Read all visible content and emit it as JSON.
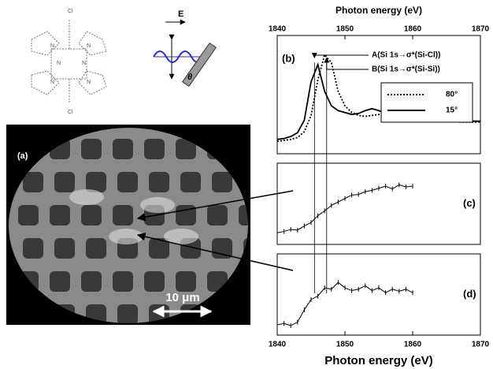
{
  "molecule": {
    "labels": [
      "Cl",
      "Cl",
      "N",
      "N",
      "N",
      "N",
      "N",
      "N"
    ]
  },
  "polarization": {
    "field": "E",
    "angle": "θ"
  },
  "image": {
    "label": "(a)",
    "scale_bar": "10 μm"
  },
  "chart_data": [
    {
      "type": "line",
      "panel": "(b)",
      "x_label": "Photon energy (eV)",
      "xlim": [
        1840,
        1870
      ],
      "xticks": [
        1840,
        1850,
        1860,
        1870
      ],
      "ylim": [
        0,
        1.1
      ],
      "x": [
        1840,
        1841,
        1842,
        1843,
        1844,
        1845,
        1846,
        1847,
        1848,
        1849,
        1850,
        1851,
        1852,
        1853,
        1854,
        1855,
        1856,
        1857,
        1858,
        1859,
        1860,
        1861,
        1862,
        1863,
        1864,
        1865,
        1866,
        1867,
        1868,
        1869,
        1870
      ],
      "series": [
        {
          "name": "80°",
          "color": "#000000",
          "dash": "2,2",
          "values": [
            0.08,
            0.09,
            0.1,
            0.12,
            0.18,
            0.35,
            0.72,
            0.98,
            0.9,
            0.6,
            0.45,
            0.38,
            0.35,
            0.34,
            0.35,
            0.36,
            0.35,
            0.33,
            0.32,
            0.31,
            0.3,
            0.3,
            0.3,
            0.29,
            0.29,
            0.29,
            0.29,
            0.28,
            0.28,
            0.28,
            0.28
          ]
        },
        {
          "name": "15°",
          "color": "#000000",
          "dash": "none",
          "values": [
            0.1,
            0.11,
            0.13,
            0.17,
            0.3,
            0.7,
            0.88,
            0.6,
            0.45,
            0.4,
            0.38,
            0.36,
            0.37,
            0.4,
            0.42,
            0.4,
            0.37,
            0.34,
            0.32,
            0.31,
            0.3,
            0.3,
            0.3,
            0.3,
            0.29,
            0.29,
            0.29,
            0.29,
            0.29,
            0.29,
            0.29
          ]
        }
      ],
      "annotations": [
        {
          "text": "A(Si 1s→σ*(Si-Cl))",
          "x": 1845.5
        },
        {
          "text": "B(Si 1s→σ*(Si-Si))",
          "x": 1847.3
        }
      ]
    },
    {
      "type": "line",
      "panel": "(c)",
      "xlim": [
        1840,
        1870
      ],
      "ylim": [
        0,
        1
      ],
      "x": [
        1840,
        1841,
        1842,
        1843,
        1844,
        1845,
        1846,
        1847,
        1848,
        1849,
        1850,
        1851,
        1852,
        1853,
        1854,
        1855,
        1856,
        1857,
        1858,
        1859,
        1860
      ],
      "series": [
        {
          "name": null,
          "color": "#000000",
          "dash": "none",
          "values": [
            0.1,
            0.12,
            0.15,
            0.14,
            0.2,
            0.25,
            0.35,
            0.42,
            0.5,
            0.55,
            0.6,
            0.65,
            0.66,
            0.7,
            0.72,
            0.75,
            0.78,
            0.74,
            0.8,
            0.77,
            0.78
          ]
        }
      ]
    },
    {
      "type": "line",
      "panel": "(d)",
      "x_label": "Photon energy (eV)",
      "xlim": [
        1840,
        1870
      ],
      "xticks": [
        1840,
        1850,
        1860,
        1870
      ],
      "ylim": [
        0,
        1
      ],
      "x": [
        1840,
        1841,
        1842,
        1843,
        1844,
        1845,
        1846,
        1847,
        1848,
        1849,
        1850,
        1851,
        1852,
        1853,
        1854,
        1855,
        1856,
        1857,
        1858,
        1859,
        1860
      ],
      "series": [
        {
          "name": null,
          "color": "#000000",
          "dash": "none",
          "values": [
            0.08,
            0.1,
            0.07,
            0.12,
            0.3,
            0.45,
            0.5,
            0.62,
            0.6,
            0.7,
            0.62,
            0.58,
            0.6,
            0.65,
            0.58,
            0.62,
            0.55,
            0.6,
            0.57,
            0.6,
            0.55
          ]
        }
      ]
    }
  ]
}
